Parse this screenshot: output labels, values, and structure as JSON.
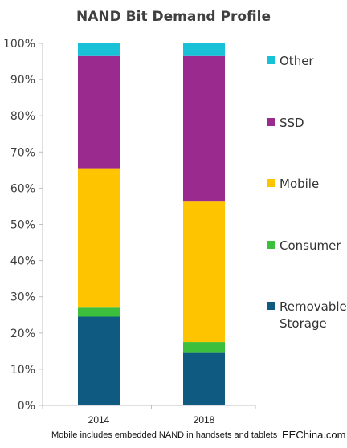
{
  "chart_data": {
    "type": "bar",
    "stacked": true,
    "title": "NAND Bit Demand Profile",
    "categories": [
      "2014",
      "2018"
    ],
    "series": [
      {
        "name": "Removable Storage",
        "color": "#0e5a80",
        "values": [
          24.5,
          14.5
        ]
      },
      {
        "name": "Consumer",
        "color": "#3cbf3c",
        "values": [
          2.5,
          3.0
        ]
      },
      {
        "name": "Mobile",
        "color": "#ffc400",
        "values": [
          38.5,
          39.0
        ]
      },
      {
        "name": "SSD",
        "color": "#9b2a8f",
        "values": [
          31.0,
          40.0
        ]
      },
      {
        "name": "Other",
        "color": "#18c1d6",
        "values": [
          3.5,
          3.5
        ]
      }
    ],
    "yticks": [
      "0%",
      "10%",
      "20%",
      "30%",
      "40%",
      "50%",
      "60%",
      "70%",
      "80%",
      "90%",
      "100%"
    ],
    "ylim": [
      0,
      100
    ],
    "grid": false,
    "legend_position": "right",
    "legend_order": [
      "Other",
      "SSD",
      "Mobile",
      "Consumer",
      "Removable Storage"
    ]
  },
  "footnote": "Mobile includes embedded NAND in handsets and tablets",
  "watermark": "EEChina.com",
  "colors": {
    "axis": "#bfbfbf",
    "text": "#404040"
  }
}
